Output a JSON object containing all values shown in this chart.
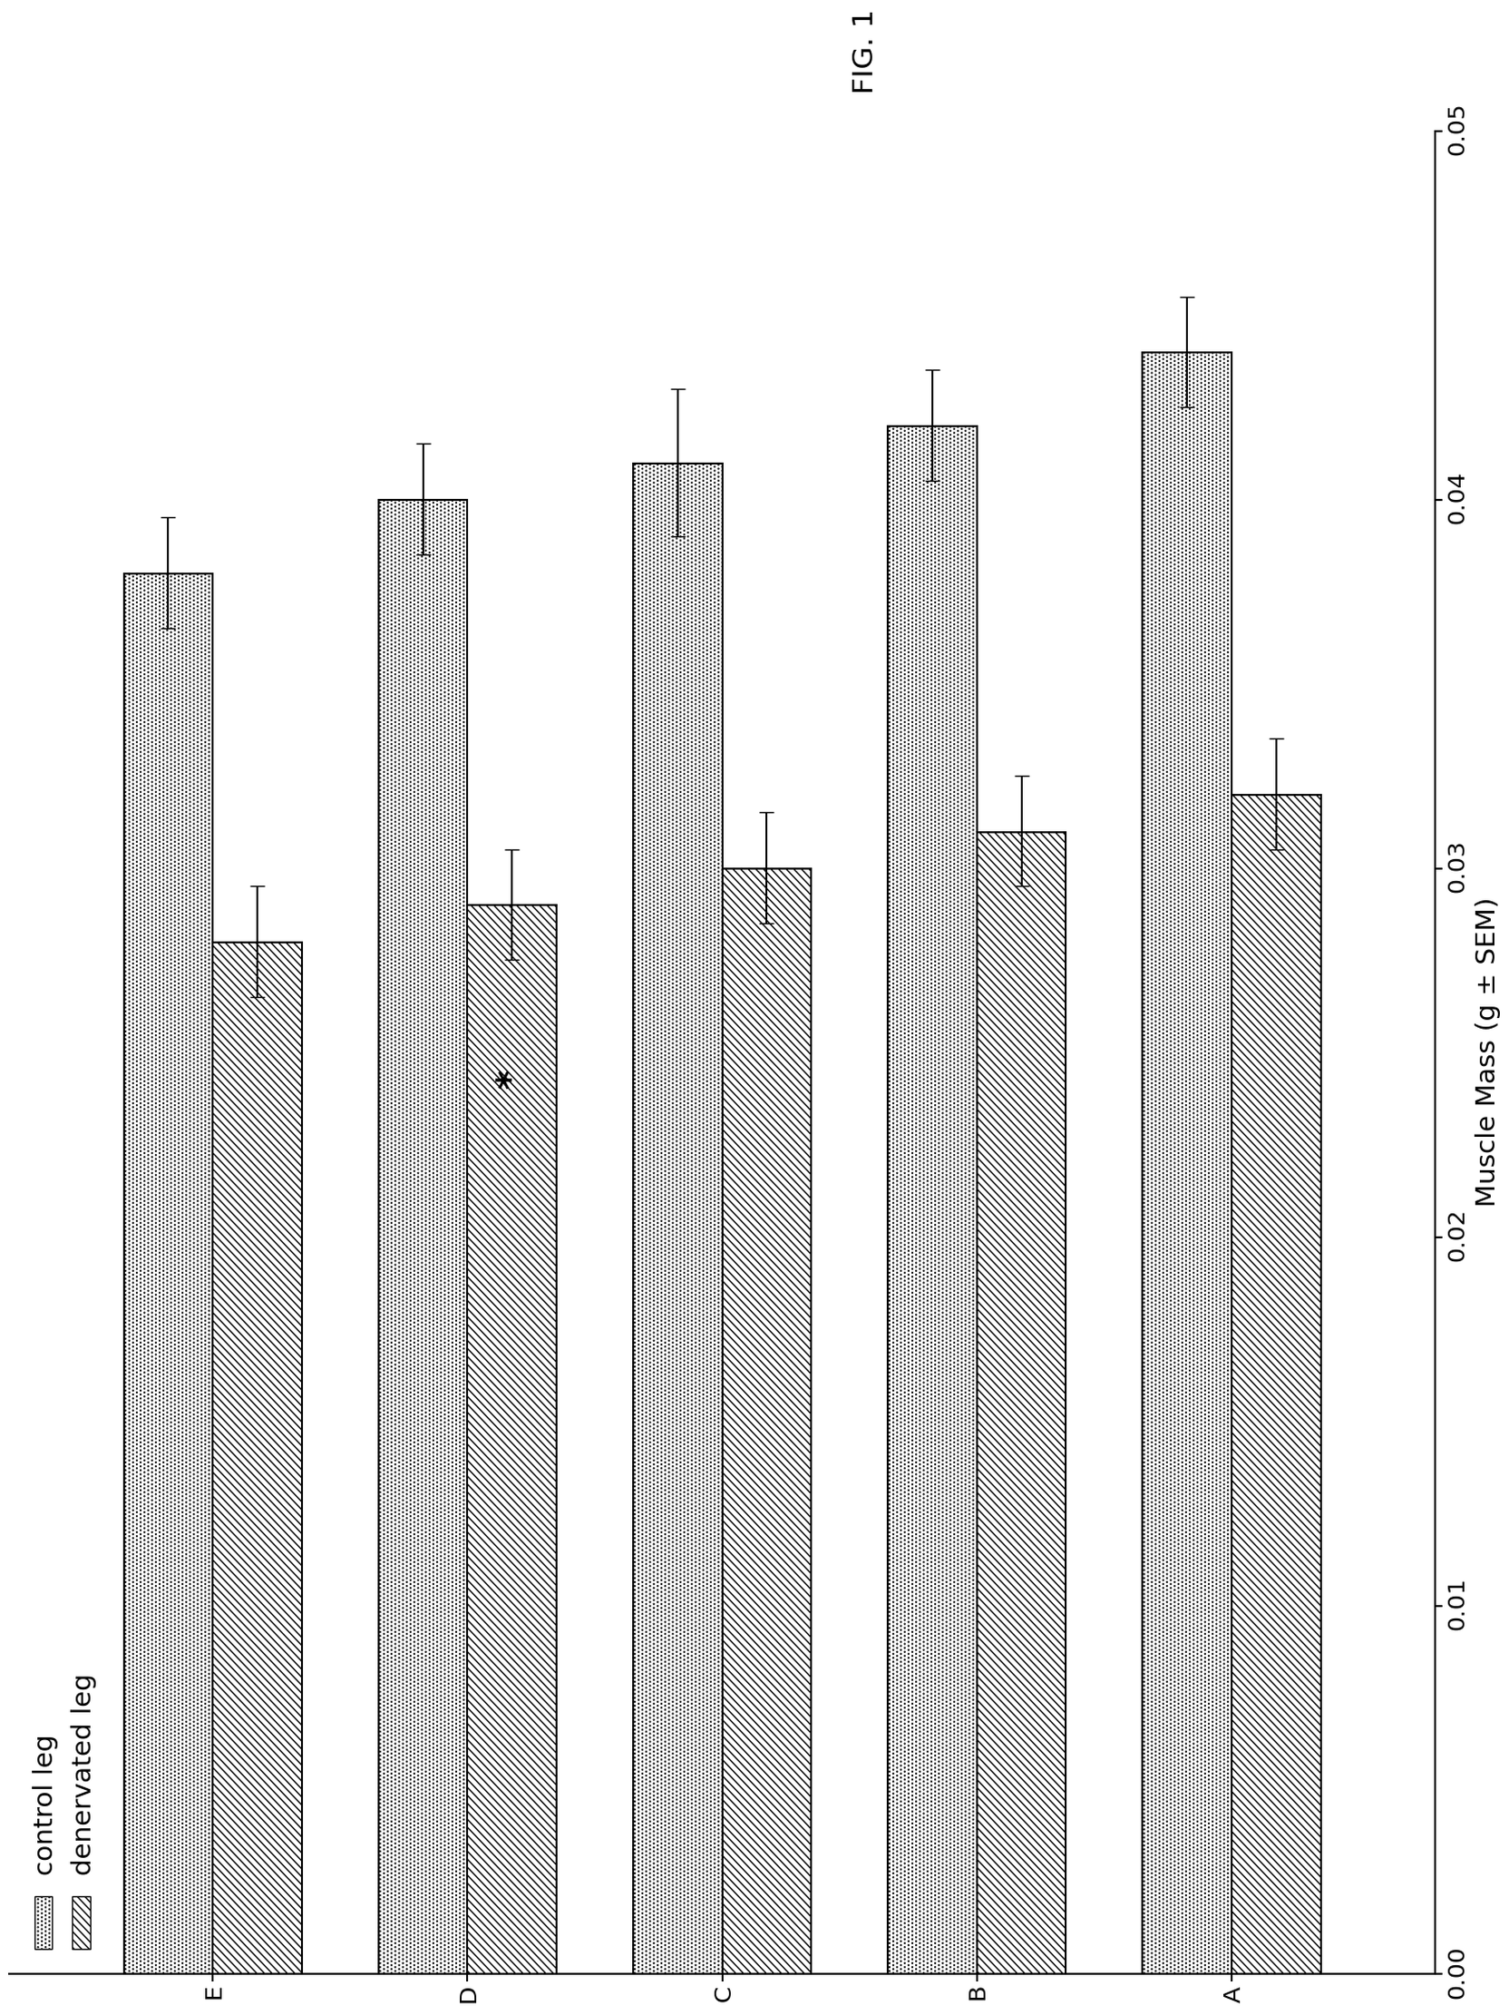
{
  "title": "FIG. 1",
  "xlabel": "Muscle Mass (g ± SEM)",
  "xlim": [
    0,
    0.05
  ],
  "xticks": [
    0.0,
    0.01,
    0.02,
    0.03,
    0.04,
    0.05
  ],
  "xtick_labels": [
    "0.00",
    "0.01",
    "0.02",
    "0.03",
    "0.04",
    "0.05"
  ],
  "categories": [
    "A",
    "B",
    "C",
    "D",
    "E"
  ],
  "control_values": [
    0.044,
    0.042,
    0.041,
    0.04,
    0.038
  ],
  "control_errors": [
    0.0015,
    0.0015,
    0.002,
    0.0015,
    0.0015
  ],
  "denervated_values": [
    0.032,
    0.031,
    0.03,
    0.029,
    0.028
  ],
  "denervated_errors": [
    0.0015,
    0.0015,
    0.0015,
    0.0015,
    0.0015
  ],
  "control_color": "white",
  "denervated_color": "white",
  "control_hatch": "....",
  "denervated_hatch": "////",
  "legend_labels": [
    "control leg",
    "denervated leg"
  ],
  "asterisk_category": "D",
  "background_color": "white",
  "bar_edge_color": "black",
  "bar_height": 0.35,
  "fontsize": 20,
  "tick_fontsize": 18,
  "title_fontsize": 22
}
